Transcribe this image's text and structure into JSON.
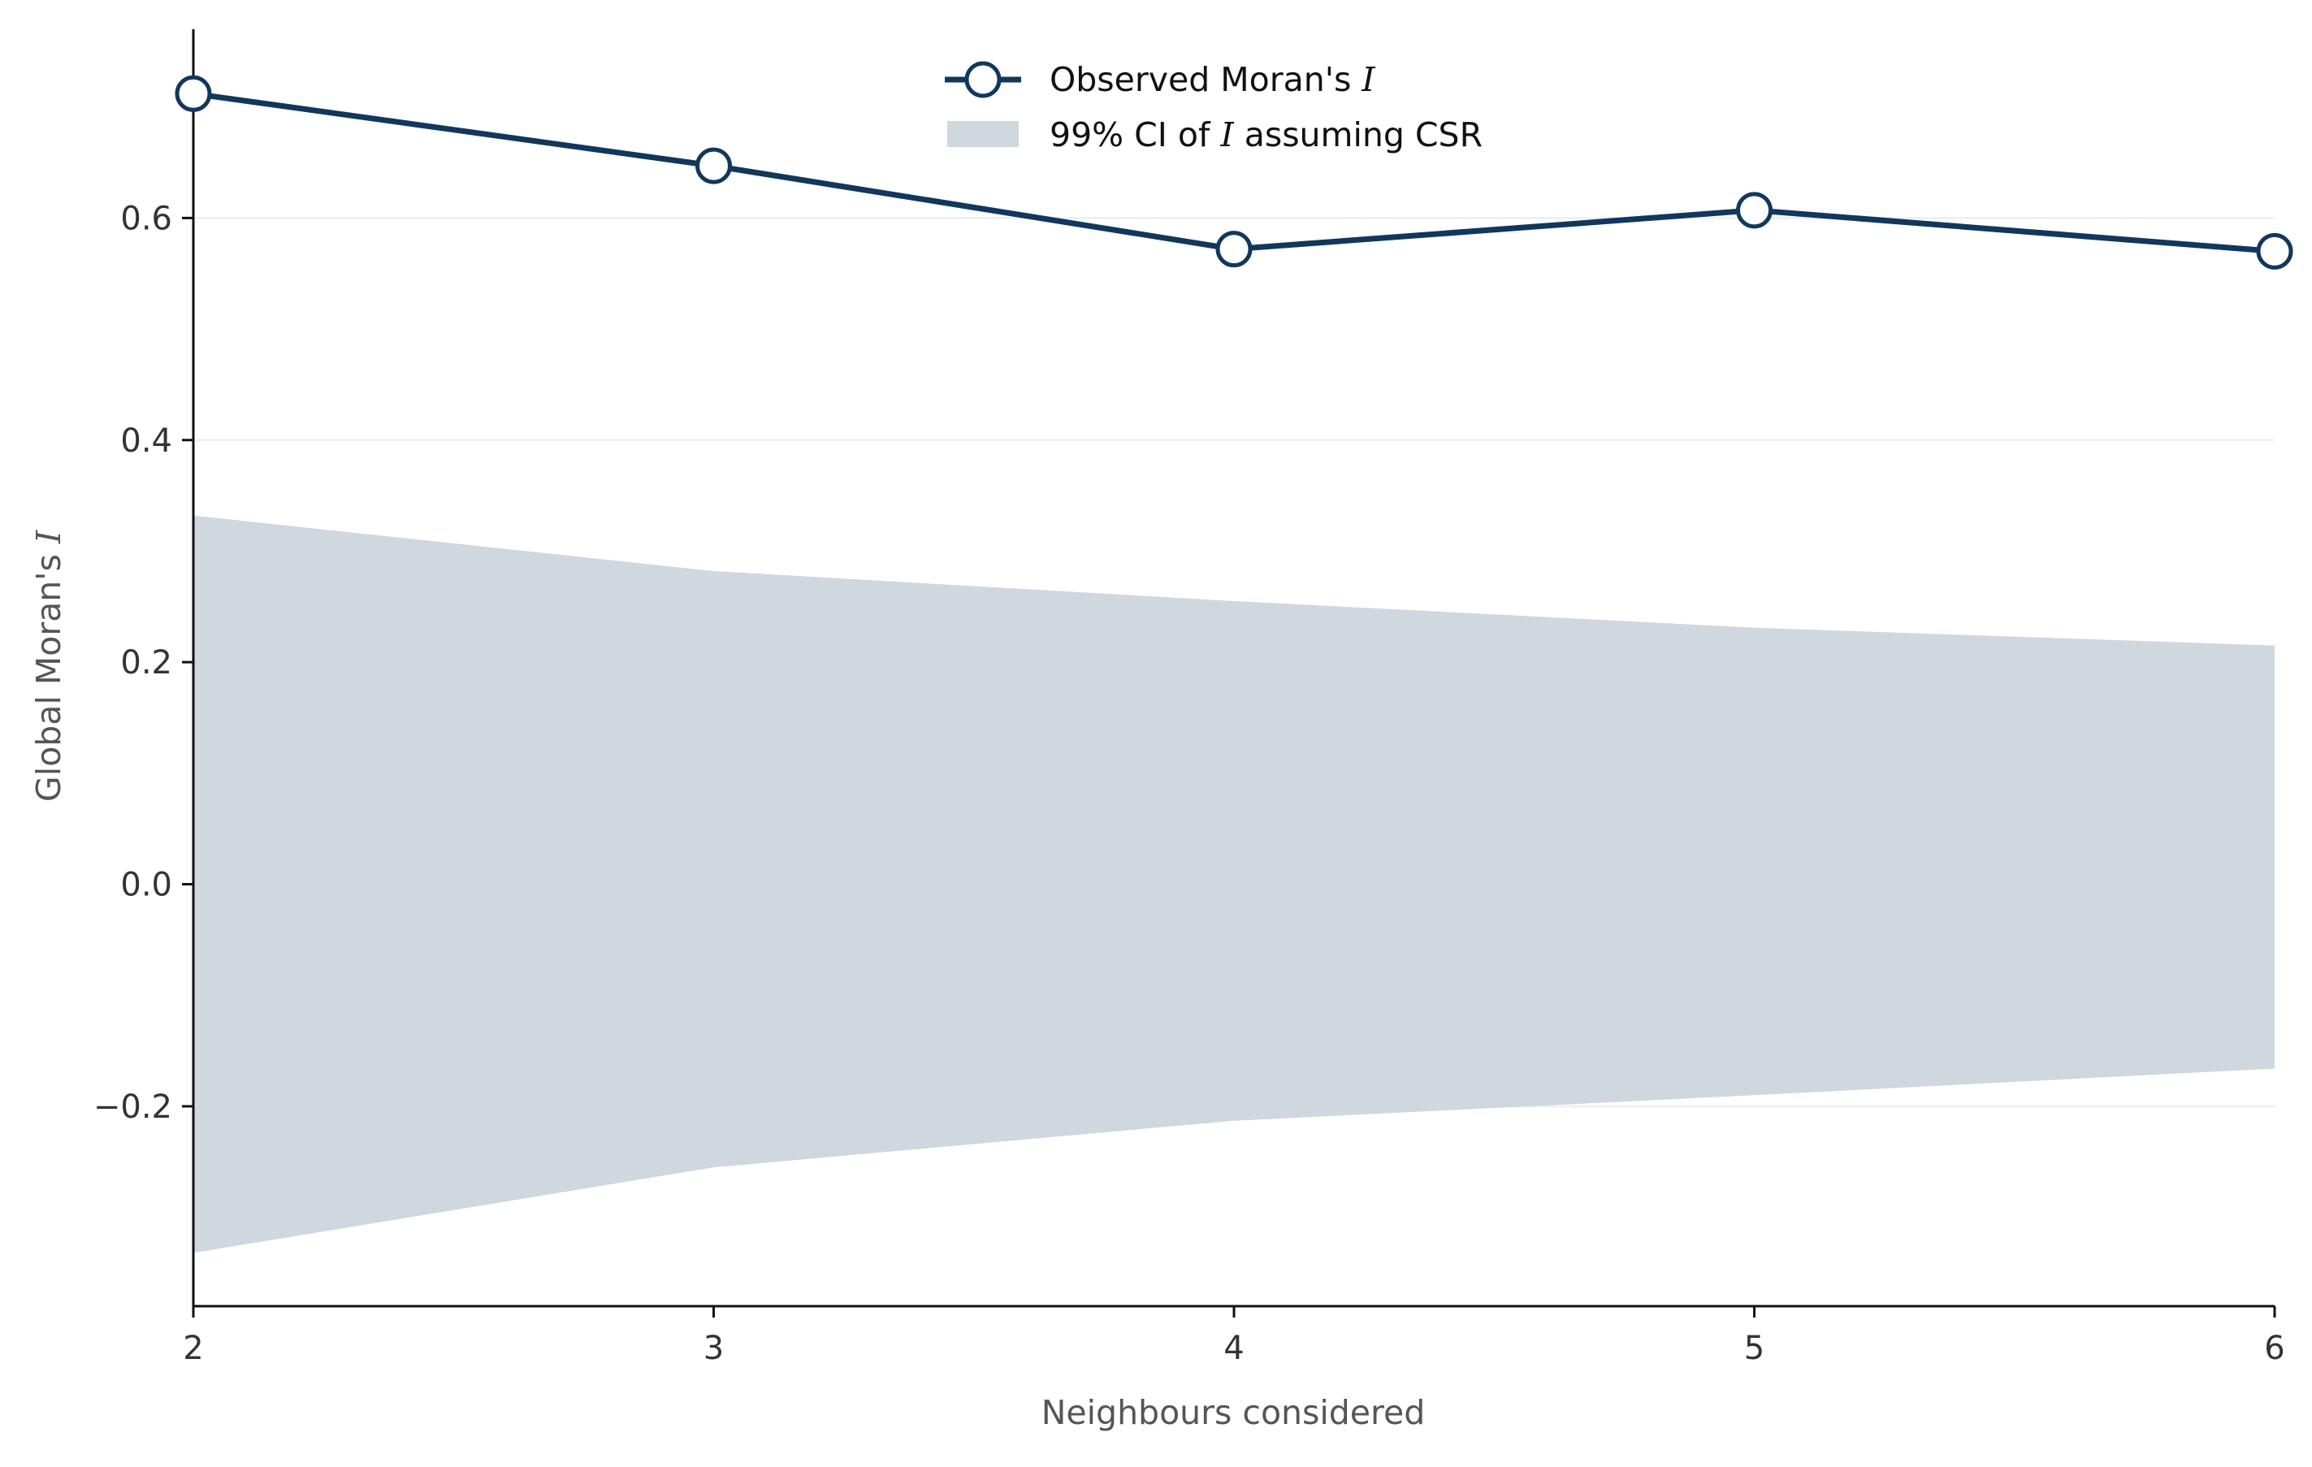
{
  "chart_data": {
    "type": "line",
    "xlabel": "Neighbours considered",
    "ylabel": "Global Moran's ",
    "ylabel_symbol": "I",
    "x": [
      2,
      3,
      4,
      5,
      6
    ],
    "xlim": [
      2,
      6
    ],
    "ylim": [
      -0.38,
      0.77
    ],
    "x_ticks": [
      2,
      3,
      4,
      5,
      6
    ],
    "y_ticks": [
      -0.2,
      0.0,
      0.2,
      0.4,
      0.6
    ],
    "x_tick_labels": [
      "2",
      "3",
      "4",
      "5",
      "6"
    ],
    "y_tick_labels": [
      "−0.2",
      "0.0",
      "0.2",
      "0.4",
      "0.6"
    ],
    "grid": "horizontal",
    "legend_position": "top-center",
    "series": [
      {
        "name": "Observed Moran's ",
        "name_symbol": "I",
        "kind": "line-marker",
        "values": [
          0.712,
          0.647,
          0.572,
          0.607,
          0.57
        ]
      },
      {
        "name": "99% CI of ",
        "name_symbol": "I",
        "name_suffix": " assuming CSR",
        "kind": "band",
        "upper": [
          0.332,
          0.282,
          0.255,
          0.231,
          0.215
        ],
        "lower": [
          -0.332,
          -0.255,
          -0.213,
          -0.19,
          -0.166
        ]
      }
    ],
    "colors": {
      "line": "#12375e",
      "marker_fill": "#ffffff",
      "band": "#cfd7df",
      "axis": "#111111",
      "grid": "#eef1f4"
    }
  }
}
